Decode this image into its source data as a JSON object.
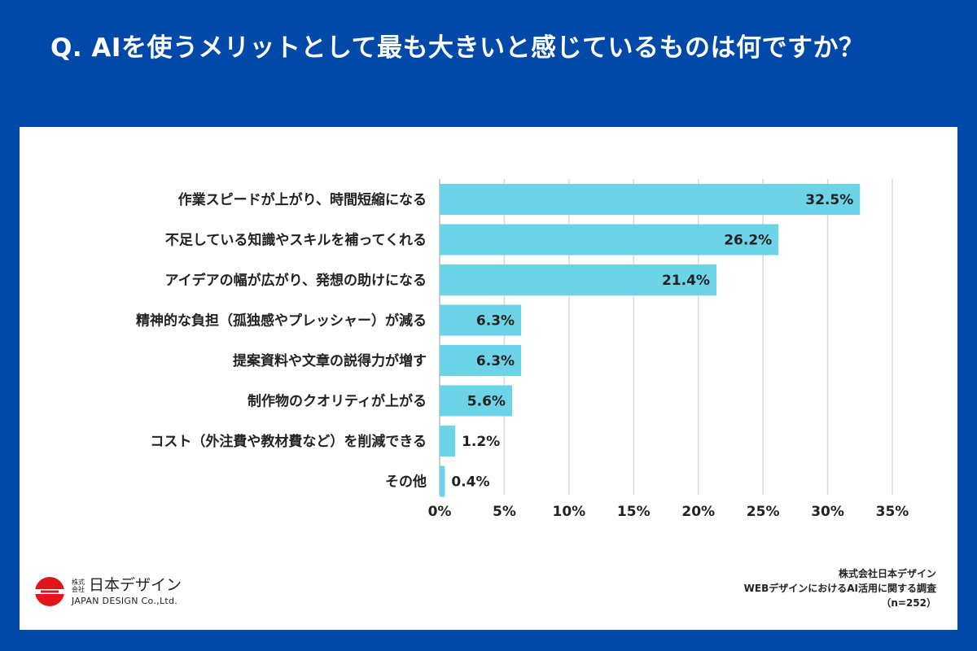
{
  "question": "Q. AIを使うメリットとして最も大きいと感じているものは何ですか？",
  "chart_data": {
    "type": "bar",
    "orientation": "horizontal",
    "title": "Q. AIを使うメリットとして最も大きいと感じているものは何ですか？",
    "categories": [
      "作業スピードが上がり、時間短縮になる",
      "不足している知識やスキルを補ってくれる",
      "アイデアの幅が広がり、発想の助けになる",
      "精神的な負担（孤独感やプレッシャー）が減る",
      "提案資料や文章の説得力が増す",
      "制作物のクオリティが上がる",
      "コスト（外注費や教材費など）を削減できる",
      "その他"
    ],
    "values": [
      32.5,
      26.2,
      21.4,
      6.3,
      6.3,
      5.6,
      1.2,
      0.4
    ],
    "value_labels": [
      "32.5%",
      "26.2%",
      "21.4%",
      "6.3%",
      "6.3%",
      "5.6%",
      "1.2%",
      "0.4%"
    ],
    "xlim": [
      0,
      35
    ],
    "x_ticks": [
      0,
      5,
      10,
      15,
      20,
      25,
      30,
      35
    ],
    "x_tick_labels": [
      "0%",
      "5%",
      "10%",
      "15%",
      "20%",
      "25%",
      "30%",
      "35%"
    ],
    "grid": true,
    "bar_color": "#6cd4e6"
  },
  "logo": {
    "small": "株式会社",
    "name": "日本デザイン",
    "english": "JAPAN DESIGN Co.,Ltd."
  },
  "source": {
    "company": "株式会社日本デザイン",
    "survey": "WEBデザインにおけるAI活用に関する調査",
    "sample": "（n=252）"
  },
  "colors": {
    "background": "#0049a8",
    "logo_red": "#e0161c"
  }
}
